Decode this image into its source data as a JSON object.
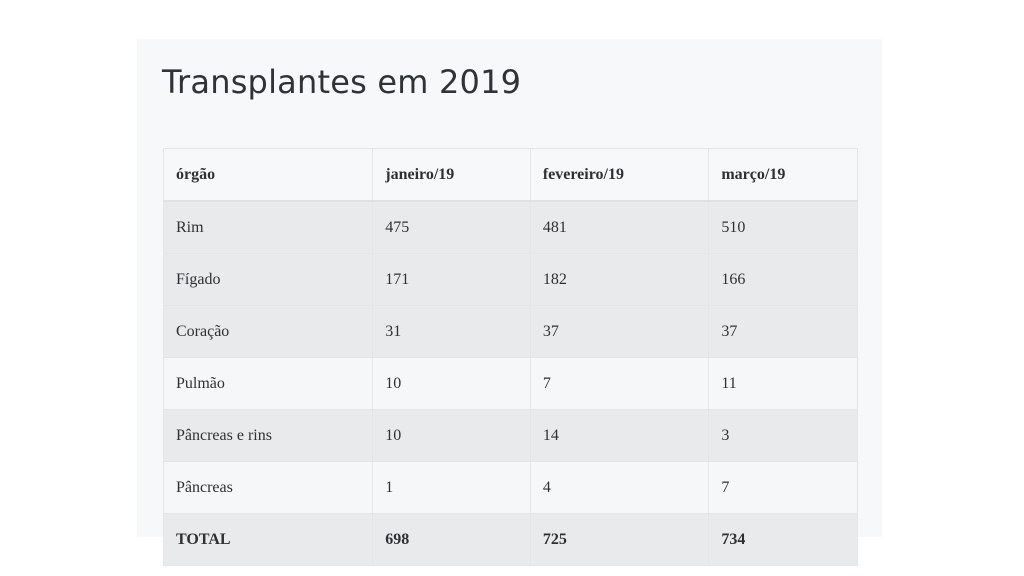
{
  "title": "Transplantes em 2019",
  "table": {
    "headers": [
      "órgão",
      "janeiro/19",
      "fevereiro/19",
      "março/19"
    ],
    "rows": [
      [
        "Rim",
        "475",
        "481",
        "510"
      ],
      [
        "Fígado",
        "171",
        "182",
        "166"
      ],
      [
        "Coração",
        "31",
        "37",
        "37"
      ],
      [
        "Pulmão",
        "10",
        "7",
        "11"
      ],
      [
        "Pâncreas e rins",
        "10",
        "14",
        "3"
      ],
      [
        "Pâncreas",
        "1",
        "4",
        "7"
      ]
    ],
    "total": [
      "TOTAL",
      "698",
      "725",
      "734"
    ]
  },
  "colors": {
    "panel_bg": "#f7f8fa",
    "row_grey": "#e9eaec",
    "row_light": "#f6f7f9",
    "border": "#e3e5e8",
    "text": "#2e3033"
  }
}
